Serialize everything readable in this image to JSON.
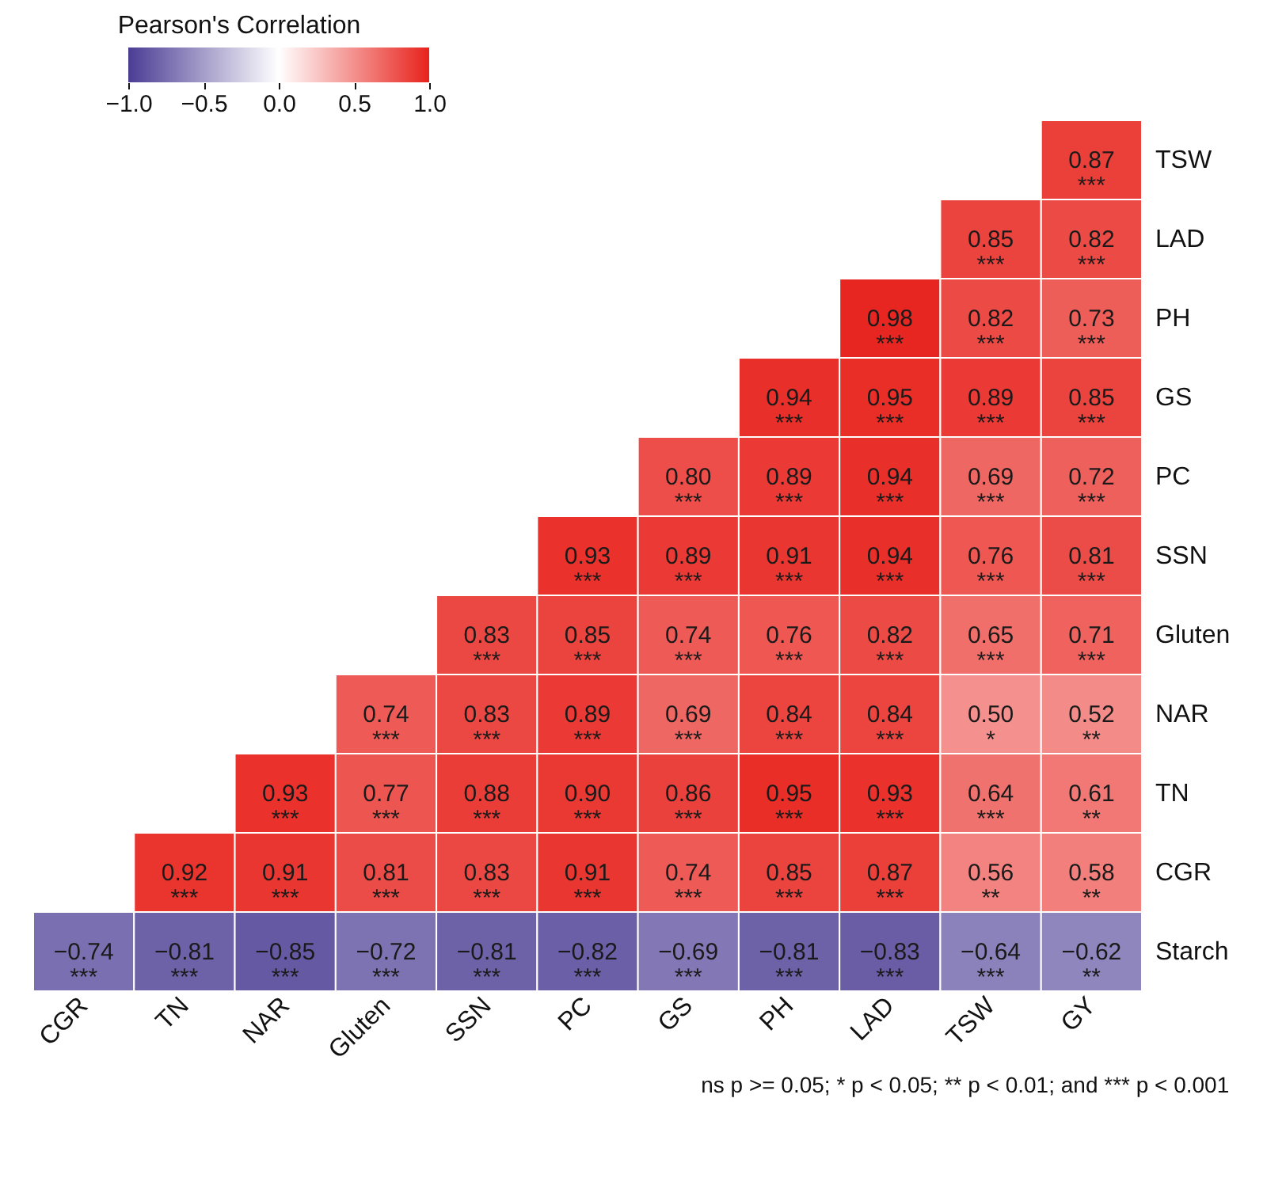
{
  "chart_data": {
    "type": "heatmap",
    "categories": [
      "CGR",
      "TN",
      "NAR",
      "Gluten",
      "SSN",
      "PC",
      "GS",
      "PH",
      "LAD",
      "TSW",
      "GY"
    ],
    "y_categories": [
      "TSW",
      "LAD",
      "PH",
      "GS",
      "PC",
      "SSN",
      "Gluten",
      "NAR",
      "TN",
      "CGR",
      "Starch"
    ],
    "cells": [
      [
        null,
        null,
        null,
        null,
        null,
        null,
        null,
        null,
        null,
        null,
        0.87
      ],
      [
        null,
        null,
        null,
        null,
        null,
        null,
        null,
        null,
        null,
        0.85,
        0.82
      ],
      [
        null,
        null,
        null,
        null,
        null,
        null,
        null,
        null,
        0.98,
        0.82,
        0.73
      ],
      [
        null,
        null,
        null,
        null,
        null,
        null,
        null,
        0.94,
        0.95,
        0.89,
        0.85
      ],
      [
        null,
        null,
        null,
        null,
        null,
        null,
        0.8,
        0.89,
        0.94,
        0.69,
        0.72
      ],
      [
        null,
        null,
        null,
        null,
        null,
        0.93,
        0.89,
        0.91,
        0.94,
        0.76,
        0.81
      ],
      [
        null,
        null,
        null,
        null,
        0.83,
        0.85,
        0.74,
        0.76,
        0.82,
        0.65,
        0.71
      ],
      [
        null,
        null,
        null,
        0.74,
        0.83,
        0.89,
        0.69,
        0.84,
        0.84,
        0.5,
        0.52
      ],
      [
        null,
        null,
        0.93,
        0.77,
        0.88,
        0.9,
        0.86,
        0.95,
        0.93,
        0.64,
        0.61
      ],
      [
        null,
        0.92,
        0.91,
        0.81,
        0.83,
        0.91,
        0.74,
        0.85,
        0.87,
        0.56,
        0.58
      ],
      [
        -0.74,
        -0.81,
        -0.85,
        -0.72,
        -0.81,
        -0.82,
        -0.69,
        -0.81,
        -0.83,
        -0.64,
        -0.62
      ]
    ],
    "cell_labels": [
      [
        null,
        null,
        null,
        null,
        null,
        null,
        null,
        null,
        null,
        null,
        "0.87\n***"
      ],
      [
        null,
        null,
        null,
        null,
        null,
        null,
        null,
        null,
        null,
        "0.85\n***",
        "0.82\n***"
      ],
      [
        null,
        null,
        null,
        null,
        null,
        null,
        null,
        null,
        "0.98\n***",
        "0.82\n***",
        "0.73\n***"
      ],
      [
        null,
        null,
        null,
        null,
        null,
        null,
        null,
        "0.94\n***",
        "0.95\n***",
        "0.89\n***",
        "0.85\n***"
      ],
      [
        null,
        null,
        null,
        null,
        null,
        null,
        "0.80\n***",
        "0.89\n***",
        "0.94\n***",
        "0.69\n***",
        "0.72\n***"
      ],
      [
        null,
        null,
        null,
        null,
        null,
        "0.93\n***",
        "0.89\n***",
        "0.91\n***",
        "0.94\n***",
        "0.76\n***",
        "0.81\n***"
      ],
      [
        null,
        null,
        null,
        null,
        "0.83\n***",
        "0.85\n***",
        "0.74\n***",
        "0.76\n***",
        "0.82\n***",
        "0.65\n***",
        "0.71\n***"
      ],
      [
        null,
        null,
        null,
        "0.74\n***",
        "0.83\n***",
        "0.89\n***",
        "0.69\n***",
        "0.84\n***",
        "0.84\n***",
        "0.50\n*",
        "0.52\n**"
      ],
      [
        null,
        null,
        "0.93\n***",
        "0.77\n***",
        "0.88\n***",
        "0.90\n***",
        "0.86\n***",
        "0.95\n***",
        "0.93\n***",
        "0.64\n***",
        "0.61\n**"
      ],
      [
        null,
        "0.92\n***",
        "0.91\n***",
        "0.81\n***",
        "0.83\n***",
        "0.91\n***",
        "0.74\n***",
        "0.85\n***",
        "0.87\n***",
        "0.56\n**",
        "0.58\n**"
      ],
      [
        "−0.74\n***",
        "−0.81\n***",
        "−0.85\n***",
        "−0.72\n***",
        "−0.81\n***",
        "−0.82\n***",
        "−0.69\n***",
        "−0.81\n***",
        "−0.83\n***",
        "−0.64\n***",
        "−0.62\n**"
      ]
    ],
    "clim": [
      -1,
      1
    ],
    "cticks": [
      {
        "value": -1,
        "label": "−1.0"
      },
      {
        "value": -0.5,
        "label": "−0.5"
      },
      {
        "value": 0,
        "label": "0.0"
      },
      {
        "value": 0.5,
        "label": "0.5"
      },
      {
        "value": 1,
        "label": "1.0"
      }
    ],
    "colors": [
      "#4b3c94",
      "#ffffff",
      "#e8221c"
    ],
    "legend_title": "Pearson's Correlation",
    "annotations": [
      "ns p >= 0.05; * p < 0.05; ** p < 0.01; and *** p < 0.001"
    ]
  }
}
